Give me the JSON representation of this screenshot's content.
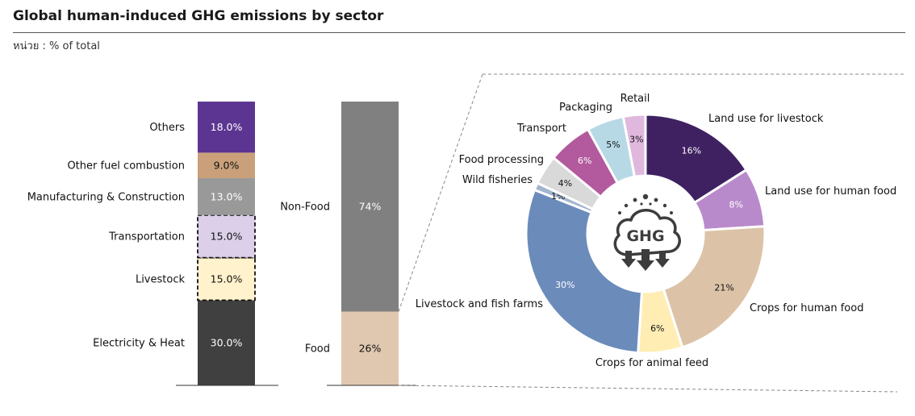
{
  "header": {
    "title": "Global human-induced GHG emissions by sector",
    "unit": "หน่วย : % of total"
  },
  "icon": {
    "label": "GHG"
  },
  "chart_data": [
    {
      "type": "bar",
      "stacked": true,
      "ylim": [
        0,
        100
      ],
      "series": [
        {
          "name": "Electricity & Heat",
          "value": 30.0,
          "label": "30.0%",
          "color": "#404040",
          "dashed": false
        },
        {
          "name": "Livestock",
          "value": 15.0,
          "label": "15.0%",
          "color": "#FFF2CC",
          "dashed": true
        },
        {
          "name": "Transportation",
          "value": 15.0,
          "label": "15.0%",
          "color": "#DCCFEA",
          "dashed": true
        },
        {
          "name": "Manufacturing & Construction",
          "value": 13.0,
          "label": "13.0%",
          "color": "#999999",
          "dashed": false
        },
        {
          "name": "Other fuel combustion",
          "value": 9.0,
          "label": "9.0%",
          "color": "#C9A07A",
          "dashed": false
        },
        {
          "name": "Others",
          "value": 18.0,
          "label": "18.0%",
          "color": "#5C3592",
          "dashed": false
        }
      ]
    },
    {
      "type": "bar",
      "stacked": true,
      "ylim": [
        0,
        100
      ],
      "series": [
        {
          "name": "Food",
          "value": 26,
          "label": "26%",
          "color": "#E0C8B0"
        },
        {
          "name": "Non-Food",
          "value": 74,
          "label": "74%",
          "color": "#808080"
        }
      ]
    },
    {
      "type": "pie",
      "donut": true,
      "slices": [
        {
          "name": "Land use for livestock",
          "value": 16,
          "label": "16%",
          "color": "#3F2161"
        },
        {
          "name": "Land use for human food",
          "value": 8,
          "label": "8%",
          "color": "#B98ACB"
        },
        {
          "name": "Crops for human food",
          "value": 21,
          "label": "21%",
          "color": "#DCC3A8"
        },
        {
          "name": "Crops for animal feed",
          "value": 6,
          "label": "6%",
          "color": "#FFEDB3"
        },
        {
          "name": "Livestock and fish farms",
          "value": 30,
          "label": "30%",
          "color": "#6B8BBB"
        },
        {
          "name": "Wild fisheries",
          "value": 1,
          "label": "1%",
          "color": "#A3B4CE"
        },
        {
          "name": "Food processing",
          "value": 4,
          "label": "4%",
          "color": "#D9D9D9"
        },
        {
          "name": "Transport",
          "value": 6,
          "label": "6%",
          "color": "#B35A9E"
        },
        {
          "name": "Packaging",
          "value": 5,
          "label": "5%",
          "color": "#B7D9E6"
        },
        {
          "name": "Retail",
          "value": 3,
          "label": "3%",
          "color": "#E0B8DE"
        }
      ]
    }
  ]
}
